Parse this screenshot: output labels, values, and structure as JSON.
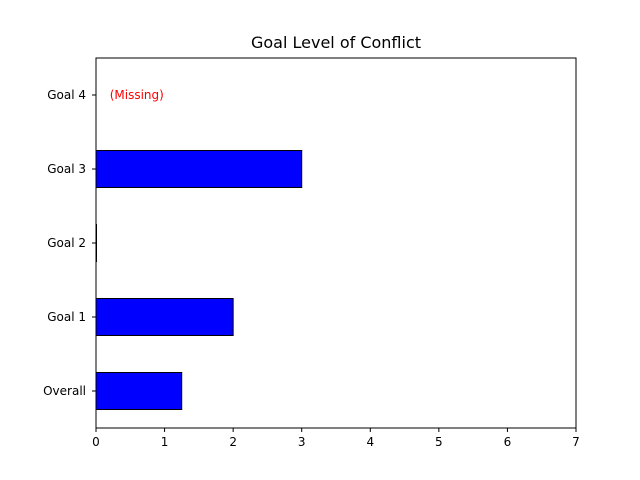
{
  "chart_data": {
    "type": "bar",
    "orientation": "horizontal",
    "title": "Goal Level of Conflict",
    "xlabel": "",
    "ylabel": "",
    "categories": [
      "Overall",
      "Goal 1",
      "Goal 2",
      "Goal 3",
      "Goal 4"
    ],
    "values": [
      1.25,
      2,
      0,
      3,
      null
    ],
    "xlim": [
      0,
      7
    ],
    "xticks": [
      "0",
      "1",
      "2",
      "3",
      "4",
      "5",
      "6",
      "7"
    ],
    "grid": false,
    "bar_color": "#0000ff",
    "bar_edge_color": "#000000",
    "annotations": [
      {
        "category": "Goal 4",
        "text": "(Missing)",
        "color": "#ff0000"
      }
    ]
  }
}
